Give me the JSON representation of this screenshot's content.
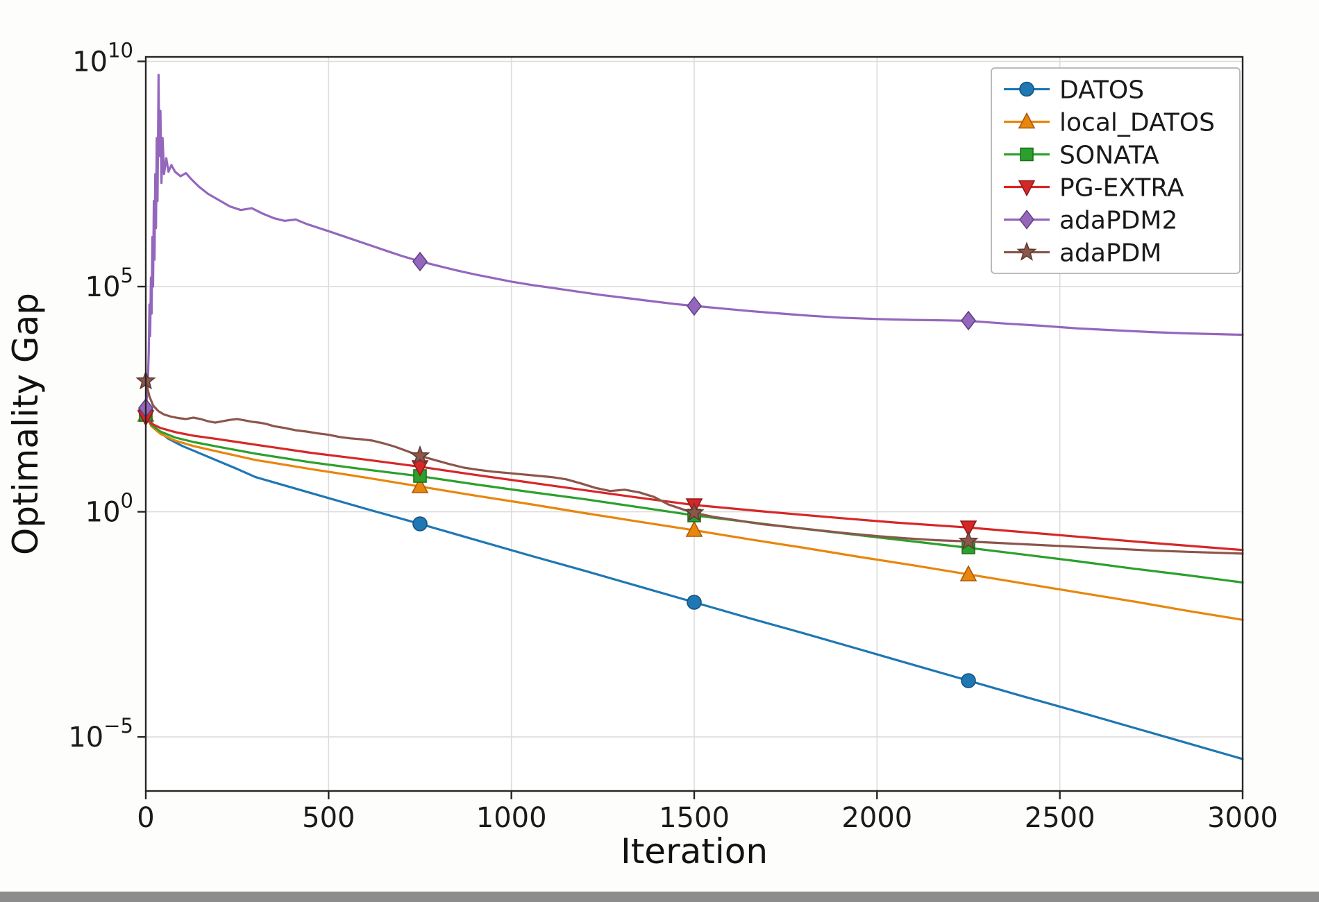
{
  "figure": {
    "background": "#fdfdfb",
    "plot_background": "#ffffff",
    "bottom_strip_color": "#8c8c8c"
  },
  "chart_data": {
    "type": "line",
    "title": "",
    "xlabel": "Iteration",
    "ylabel": "Optimality Gap",
    "x_axis": {
      "min": 0,
      "max": 3000,
      "ticks": [
        0,
        500,
        1000,
        1500,
        2000,
        2500,
        3000
      ]
    },
    "y_axis": {
      "scale": "log10",
      "min_exp": -6.2,
      "max_exp": 10.1,
      "tick_exponents": [
        10,
        5,
        0,
        -5
      ]
    },
    "grid": {
      "show": true,
      "color": "#dcdcdc",
      "width": 1.6
    },
    "axes": {
      "spine_color": "#262626",
      "spine_width": 2.4,
      "tick_length": 12,
      "tick_label_color": "#1a1a1a"
    },
    "legend": {
      "position": "top-right",
      "border_color": "#b3b3b3",
      "background": "#ffffff"
    },
    "marker_x": [
      0,
      750,
      1500,
      2250
    ],
    "series": [
      {
        "name": "DATOS",
        "color": "#1f77b4",
        "edge": "#14537d",
        "marker": "circle",
        "points_format": "[iteration, log10(optimality_gap)]",
        "points": [
          [
            0,
            2.25
          ],
          [
            12,
            2.02
          ],
          [
            30,
            1.83
          ],
          [
            60,
            1.63
          ],
          [
            100,
            1.46
          ],
          [
            150,
            1.29
          ],
          [
            200,
            1.12
          ],
          [
            250,
            0.95
          ],
          [
            300,
            0.77
          ],
          [
            450,
            0.42
          ],
          [
            600,
            0.07
          ],
          [
            750,
            -0.27
          ],
          [
            900,
            -0.62
          ],
          [
            1050,
            -0.97
          ],
          [
            1200,
            -1.31
          ],
          [
            1350,
            -1.66
          ],
          [
            1500,
            -2.01
          ],
          [
            1650,
            -2.36
          ],
          [
            1800,
            -2.7
          ],
          [
            1950,
            -3.05
          ],
          [
            2100,
            -3.4
          ],
          [
            2250,
            -3.75
          ],
          [
            2400,
            -4.1
          ],
          [
            2550,
            -4.44
          ],
          [
            2700,
            -4.79
          ],
          [
            2850,
            -5.14
          ],
          [
            3000,
            -5.49
          ]
        ]
      },
      {
        "name": "local_DATOS",
        "color": "#e8860d",
        "edge": "#a85a0a",
        "marker": "triangle-up",
        "points": [
          [
            0,
            2.15
          ],
          [
            15,
            1.9
          ],
          [
            40,
            1.73
          ],
          [
            80,
            1.58
          ],
          [
            130,
            1.46
          ],
          [
            200,
            1.33
          ],
          [
            250,
            1.24
          ],
          [
            300,
            1.15
          ],
          [
            450,
            0.95
          ],
          [
            600,
            0.76
          ],
          [
            750,
            0.56
          ],
          [
            900,
            0.36
          ],
          [
            1050,
            0.17
          ],
          [
            1200,
            -0.03
          ],
          [
            1350,
            -0.22
          ],
          [
            1500,
            -0.41
          ],
          [
            1650,
            -0.61
          ],
          [
            1800,
            -0.8
          ],
          [
            1950,
            -1.0
          ],
          [
            2100,
            -1.19
          ],
          [
            2250,
            -1.39
          ],
          [
            2400,
            -1.59
          ],
          [
            2550,
            -1.79
          ],
          [
            2700,
            -1.99
          ],
          [
            2850,
            -2.2
          ],
          [
            3000,
            -2.4
          ]
        ]
      },
      {
        "name": "SONATA",
        "color": "#2ca02c",
        "edge": "#1d6f1d",
        "marker": "square",
        "points": [
          [
            0,
            2.15
          ],
          [
            15,
            1.93
          ],
          [
            40,
            1.78
          ],
          [
            80,
            1.65
          ],
          [
            130,
            1.55
          ],
          [
            200,
            1.44
          ],
          [
            300,
            1.29
          ],
          [
            450,
            1.1
          ],
          [
            600,
            0.94
          ],
          [
            750,
            0.79
          ],
          [
            900,
            0.61
          ],
          [
            1050,
            0.44
          ],
          [
            1200,
            0.28
          ],
          [
            1350,
            0.1
          ],
          [
            1500,
            -0.08
          ],
          [
            1650,
            -0.23
          ],
          [
            1800,
            -0.38
          ],
          [
            1950,
            -0.52
          ],
          [
            2100,
            -0.66
          ],
          [
            2250,
            -0.8
          ],
          [
            2400,
            -0.95
          ],
          [
            2550,
            -1.1
          ],
          [
            2700,
            -1.26
          ],
          [
            2850,
            -1.41
          ],
          [
            3000,
            -1.57
          ]
        ]
      },
      {
        "name": "PG-EXTRA",
        "color": "#d62728",
        "edge": "#8f1a1b",
        "marker": "triangle-down",
        "points": [
          [
            0,
            2.1
          ],
          [
            15,
            1.96
          ],
          [
            40,
            1.86
          ],
          [
            80,
            1.77
          ],
          [
            130,
            1.69
          ],
          [
            200,
            1.61
          ],
          [
            300,
            1.49
          ],
          [
            450,
            1.31
          ],
          [
            600,
            1.16
          ],
          [
            750,
            1.0
          ],
          [
            900,
            0.82
          ],
          [
            1050,
            0.65
          ],
          [
            1200,
            0.48
          ],
          [
            1350,
            0.31
          ],
          [
            1500,
            0.15
          ],
          [
            1700,
            0.0
          ],
          [
            1900,
            -0.14
          ],
          [
            2050,
            -0.24
          ],
          [
            2250,
            -0.35
          ],
          [
            2500,
            -0.52
          ],
          [
            2750,
            -0.69
          ],
          [
            3000,
            -0.85
          ]
        ]
      },
      {
        "name": "adaPDM2",
        "color": "#9467bd",
        "edge": "#634083",
        "marker": "diamond",
        "points": [
          [
            0,
            2.3
          ],
          [
            5,
            2.7
          ],
          [
            8,
            3.5
          ],
          [
            10,
            4.6
          ],
          [
            12,
            3.9
          ],
          [
            14,
            5.2
          ],
          [
            16,
            4.4
          ],
          [
            18,
            6.1
          ],
          [
            20,
            5.0
          ],
          [
            22,
            6.9
          ],
          [
            24,
            5.6
          ],
          [
            26,
            7.5
          ],
          [
            28,
            6.3
          ],
          [
            30,
            8.3
          ],
          [
            32,
            6.9
          ],
          [
            35,
            9.7
          ],
          [
            37,
            7.9
          ],
          [
            40,
            8.9
          ],
          [
            43,
            7.3
          ],
          [
            46,
            8.3
          ],
          [
            50,
            7.5
          ],
          [
            56,
            7.85
          ],
          [
            62,
            7.55
          ],
          [
            70,
            7.7
          ],
          [
            80,
            7.55
          ],
          [
            95,
            7.45
          ],
          [
            110,
            7.52
          ],
          [
            125,
            7.38
          ],
          [
            145,
            7.22
          ],
          [
            170,
            7.06
          ],
          [
            200,
            6.92
          ],
          [
            230,
            6.78
          ],
          [
            260,
            6.7
          ],
          [
            290,
            6.74
          ],
          [
            320,
            6.62
          ],
          [
            350,
            6.52
          ],
          [
            380,
            6.46
          ],
          [
            410,
            6.49
          ],
          [
            440,
            6.39
          ],
          [
            470,
            6.31
          ],
          [
            500,
            6.23
          ],
          [
            540,
            6.12
          ],
          [
            580,
            6.01
          ],
          [
            620,
            5.9
          ],
          [
            660,
            5.79
          ],
          [
            700,
            5.68
          ],
          [
            750,
            5.56
          ],
          [
            800,
            5.46
          ],
          [
            850,
            5.36
          ],
          [
            900,
            5.27
          ],
          [
            950,
            5.19
          ],
          [
            1000,
            5.11
          ],
          [
            1060,
            5.03
          ],
          [
            1120,
            4.96
          ],
          [
            1180,
            4.89
          ],
          [
            1250,
            4.81
          ],
          [
            1320,
            4.74
          ],
          [
            1390,
            4.67
          ],
          [
            1450,
            4.61
          ],
          [
            1500,
            4.57
          ],
          [
            1580,
            4.51
          ],
          [
            1660,
            4.45
          ],
          [
            1740,
            4.4
          ],
          [
            1820,
            4.35
          ],
          [
            1900,
            4.31
          ],
          [
            2000,
            4.28
          ],
          [
            2100,
            4.26
          ],
          [
            2180,
            4.25
          ],
          [
            2250,
            4.24
          ],
          [
            2350,
            4.18
          ],
          [
            2450,
            4.13
          ],
          [
            2550,
            4.07
          ],
          [
            2650,
            4.03
          ],
          [
            2750,
            3.99
          ],
          [
            2850,
            3.96
          ],
          [
            3000,
            3.93
          ]
        ]
      },
      {
        "name": "adaPDM",
        "color": "#8c564b",
        "edge": "#5e3a32",
        "marker": "star",
        "points": [
          [
            0,
            2.9
          ],
          [
            10,
            2.56
          ],
          [
            20,
            2.36
          ],
          [
            35,
            2.23
          ],
          [
            50,
            2.16
          ],
          [
            70,
            2.11
          ],
          [
            90,
            2.08
          ],
          [
            110,
            2.06
          ],
          [
            130,
            2.09
          ],
          [
            150,
            2.06
          ],
          [
            170,
            2.01
          ],
          [
            190,
            1.98
          ],
          [
            210,
            2.01
          ],
          [
            230,
            2.04
          ],
          [
            250,
            2.06
          ],
          [
            270,
            2.03
          ],
          [
            290,
            2.0
          ],
          [
            310,
            1.98
          ],
          [
            330,
            1.95
          ],
          [
            350,
            1.9
          ],
          [
            380,
            1.86
          ],
          [
            410,
            1.81
          ],
          [
            440,
            1.78
          ],
          [
            470,
            1.74
          ],
          [
            500,
            1.71
          ],
          [
            530,
            1.66
          ],
          [
            560,
            1.63
          ],
          [
            590,
            1.61
          ],
          [
            620,
            1.58
          ],
          [
            650,
            1.52
          ],
          [
            680,
            1.45
          ],
          [
            710,
            1.36
          ],
          [
            750,
            1.24
          ],
          [
            790,
            1.15
          ],
          [
            830,
            1.06
          ],
          [
            870,
            0.98
          ],
          [
            910,
            0.93
          ],
          [
            950,
            0.89
          ],
          [
            990,
            0.86
          ],
          [
            1030,
            0.83
          ],
          [
            1070,
            0.8
          ],
          [
            1110,
            0.77
          ],
          [
            1150,
            0.72
          ],
          [
            1190,
            0.63
          ],
          [
            1230,
            0.53
          ],
          [
            1270,
            0.46
          ],
          [
            1310,
            0.49
          ],
          [
            1350,
            0.43
          ],
          [
            1390,
            0.33
          ],
          [
            1430,
            0.16
          ],
          [
            1470,
            0.05
          ],
          [
            1500,
            -0.02
          ],
          [
            1550,
            -0.11
          ],
          [
            1600,
            -0.17
          ],
          [
            1680,
            -0.27
          ],
          [
            1760,
            -0.34
          ],
          [
            1840,
            -0.41
          ],
          [
            1920,
            -0.48
          ],
          [
            2000,
            -0.54
          ],
          [
            2080,
            -0.59
          ],
          [
            2160,
            -0.63
          ],
          [
            2250,
            -0.66
          ],
          [
            2350,
            -0.7
          ],
          [
            2450,
            -0.74
          ],
          [
            2550,
            -0.78
          ],
          [
            2650,
            -0.82
          ],
          [
            2750,
            -0.86
          ],
          [
            2850,
            -0.89
          ],
          [
            3000,
            -0.93
          ]
        ]
      }
    ]
  }
}
